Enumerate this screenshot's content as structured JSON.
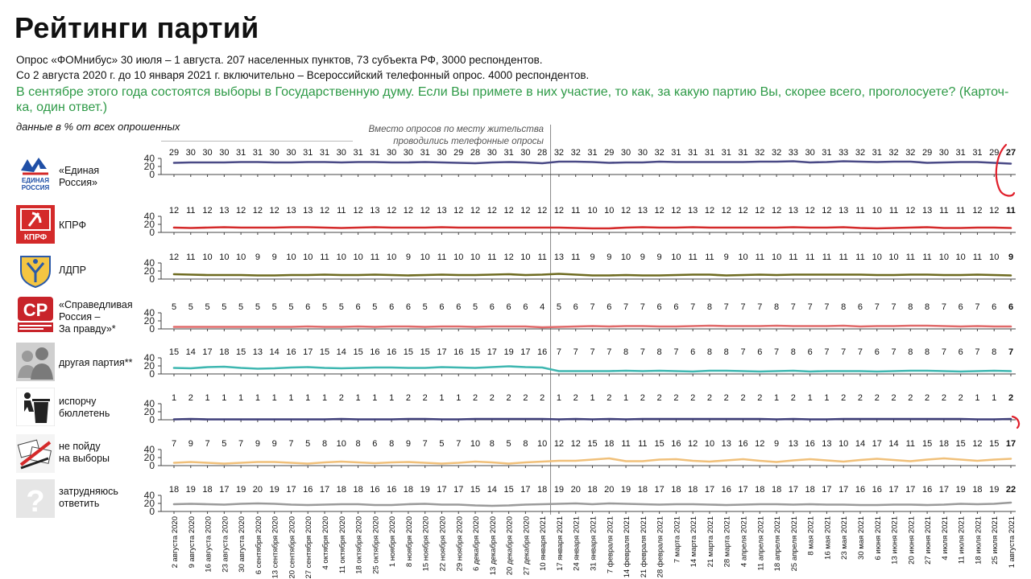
{
  "header": {
    "title": "Рейтинги партий",
    "subtitle1": "Опрос «ФОМнибус» 30 июля – 1 августа. 207 населенных пунктов, 73 субъекта РФ, 3000 респондентов.",
    "subtitle2": "Со 2 августа 2020 г. до 10 января 2021 г. включительно – Всероссийский телефонный опрос. 4000 респондентов.",
    "question": "В сентябре этого года состоятся выборы в Государственную думу. Если Вы примете в них участие, то как, за какую партию Вы, скорее всего, проголосуете? (Карточ-ка, один ответ.)",
    "units": "данные в % от всех опрошенных",
    "phone_note": "Вместо опросов по месту жительства проводились телефонные опросы"
  },
  "colors": {
    "ur": "#4a4a86",
    "kprf": "#d42a2a",
    "ldpr": "#6d6a1f",
    "sr": "#e06a6a",
    "other": "#3fb7b1",
    "spoil": "#3d3d78",
    "not_vote": "#f0c07a",
    "hard": "#9a9a9a",
    "question_text": "#2e9a47",
    "circle": "#e01e2a"
  },
  "chart_data": {
    "type": "line",
    "layout": "small-multiples",
    "x": [
      "2 августа 2020",
      "9 августа 2020",
      "16 августа 2020",
      "23 августа 2020",
      "30 августа 2020",
      "6 сентября 2020",
      "13 сентября 2020",
      "20 сентября 2020",
      "27 сентября 2020",
      "4 октября 2020",
      "11 октября 2020",
      "18 октября 2020",
      "25 октября 2020",
      "1 ноября 2020",
      "8 ноября 2020",
      "15 ноября 2020",
      "22 ноября 2020",
      "29 ноября 2020",
      "6 декабря 2020",
      "13 декабря 2020",
      "20 декабря 2020",
      "27 декабря 2020",
      "10 января 2021",
      "17 января 2021",
      "24 января 2021",
      "31 января 2021",
      "7 февраля 2021",
      "14 февраля 2021",
      "21 февраля 2021",
      "28 февраля 2021",
      "7 марта 2021",
      "14 марта 2021",
      "21 марта 2021",
      "28 марта 2021",
      "4 апреля 2021",
      "11 апреля 2021",
      "18 апреля 2021",
      "25 апреля 2021",
      "8 мая 2021",
      "16 мая 2021",
      "23 мая 2021",
      "30 мая 2021",
      "6 июня 2021",
      "13 июня 2021",
      "20 июня 2021",
      "27 июня 2021",
      "4 июля 2021",
      "11 июля 2021",
      "18 июля 2021",
      "25 июля 2021",
      "1 августа 2021"
    ],
    "divider_after_index": 22,
    "ylim": [
      0,
      40
    ],
    "yticks": [
      0,
      20,
      40
    ],
    "series": [
      {
        "key": "ur",
        "name": "«Единая Россия»",
        "label_lines": [
          "«Единая",
          "Россия»"
        ],
        "icon": "edinaya-rossiya-logo",
        "logo_text": "ЕДИНАЯ РОССИЯ",
        "values": [
          29,
          30,
          30,
          30,
          31,
          31,
          30,
          30,
          31,
          31,
          30,
          31,
          31,
          30,
          30,
          31,
          30,
          29,
          28,
          30,
          31,
          30,
          28,
          32,
          32,
          31,
          29,
          30,
          30,
          32,
          31,
          31,
          31,
          31,
          31,
          32,
          32,
          33,
          30,
          31,
          33,
          32,
          31,
          32,
          32,
          29,
          30,
          31,
          31,
          29,
          27
        ]
      },
      {
        "key": "kprf",
        "name": "КПРФ",
        "label_lines": [
          "КПРФ"
        ],
        "icon": "kprf-logo",
        "logo_text": "КПРФ",
        "values": [
          12,
          11,
          12,
          13,
          12,
          12,
          12,
          13,
          13,
          12,
          11,
          12,
          13,
          12,
          12,
          12,
          13,
          12,
          12,
          12,
          12,
          12,
          12,
          12,
          11,
          10,
          10,
          12,
          13,
          12,
          12,
          13,
          12,
          12,
          12,
          12,
          12,
          13,
          12,
          12,
          13,
          11,
          10,
          11,
          12,
          13,
          11,
          11,
          12,
          12,
          11
        ]
      },
      {
        "key": "ldpr",
        "name": "ЛДПР",
        "label_lines": [
          "ЛДПР"
        ],
        "icon": "ldpr-logo",
        "logo_text": "",
        "values": [
          12,
          11,
          10,
          10,
          10,
          9,
          9,
          10,
          10,
          11,
          10,
          10,
          11,
          10,
          9,
          10,
          11,
          10,
          10,
          11,
          12,
          10,
          11,
          13,
          11,
          9,
          9,
          10,
          9,
          9,
          10,
          11,
          11,
          9,
          10,
          11,
          10,
          11,
          11,
          11,
          11,
          11,
          10,
          10,
          11,
          11,
          10,
          10,
          11,
          10,
          9
        ]
      },
      {
        "key": "sr",
        "name": "«Справедливая Россия – За правду»*",
        "label_lines": [
          "«Справедливая",
          "Россия –",
          "За правду»*"
        ],
        "icon": "spravedlivaya-rossiya-logo",
        "logo_text": "СР",
        "values": [
          5,
          5,
          5,
          5,
          5,
          5,
          5,
          5,
          6,
          5,
          5,
          6,
          5,
          6,
          6,
          5,
          6,
          6,
          5,
          6,
          6,
          6,
          4,
          5,
          6,
          7,
          6,
          7,
          7,
          6,
          6,
          7,
          8,
          7,
          7,
          7,
          8,
          7,
          7,
          7,
          8,
          6,
          7,
          7,
          8,
          8,
          7,
          6,
          7,
          6,
          6
        ]
      },
      {
        "key": "other",
        "name": "другая партия**",
        "label_lines": [
          "другая партия**"
        ],
        "icon": "people-silhouette-icon",
        "logo_text": "",
        "values": [
          15,
          14,
          17,
          18,
          15,
          13,
          14,
          16,
          17,
          15,
          14,
          15,
          16,
          16,
          15,
          15,
          17,
          16,
          15,
          17,
          19,
          17,
          16,
          7,
          7,
          7,
          7,
          8,
          7,
          8,
          7,
          6,
          8,
          8,
          7,
          6,
          7,
          8,
          6,
          7,
          7,
          7,
          6,
          7,
          8,
          8,
          7,
          6,
          7,
          8,
          7
        ]
      },
      {
        "key": "spoil",
        "name": "испорчу бюллетень",
        "label_lines": [
          "испорчу",
          "бюллетень"
        ],
        "icon": "trash-bin-icon",
        "logo_text": "",
        "values": [
          1,
          2,
          1,
          1,
          1,
          1,
          1,
          1,
          1,
          1,
          2,
          1,
          1,
          1,
          2,
          2,
          1,
          1,
          2,
          2,
          2,
          2,
          2,
          1,
          2,
          1,
          2,
          1,
          2,
          2,
          2,
          2,
          2,
          2,
          2,
          2,
          1,
          2,
          1,
          1,
          2,
          2,
          2,
          2,
          2,
          2,
          2,
          2,
          1,
          1,
          2
        ]
      },
      {
        "key": "not_vote",
        "name": "не пойду на выборы",
        "label_lines": [
          "не пойду",
          "на выборы"
        ],
        "icon": "torn-ballots-icon",
        "logo_text": "",
        "values": [
          7,
          9,
          7,
          5,
          7,
          9,
          9,
          7,
          5,
          8,
          10,
          8,
          6,
          8,
          9,
          7,
          5,
          7,
          10,
          8,
          5,
          8,
          10,
          12,
          12,
          15,
          18,
          11,
          11,
          15,
          16,
          12,
          10,
          13,
          16,
          12,
          9,
          13,
          16,
          13,
          10,
          14,
          17,
          14,
          11,
          15,
          18,
          15,
          12,
          15,
          17
        ]
      },
      {
        "key": "hard",
        "name": "затрудняюсь ответить",
        "label_lines": [
          "затрудняюсь",
          "ответить"
        ],
        "icon": "question-mark-icon",
        "logo_text": "",
        "values": [
          18,
          19,
          18,
          17,
          19,
          20,
          19,
          17,
          16,
          17,
          18,
          18,
          16,
          16,
          18,
          19,
          17,
          17,
          15,
          14,
          15,
          17,
          18,
          19,
          20,
          18,
          20,
          19,
          18,
          17,
          18,
          18,
          17,
          16,
          17,
          18,
          18,
          17,
          18,
          17,
          17,
          16,
          16,
          17,
          17,
          16,
          17,
          19,
          18,
          19,
          22
        ]
      }
    ]
  }
}
